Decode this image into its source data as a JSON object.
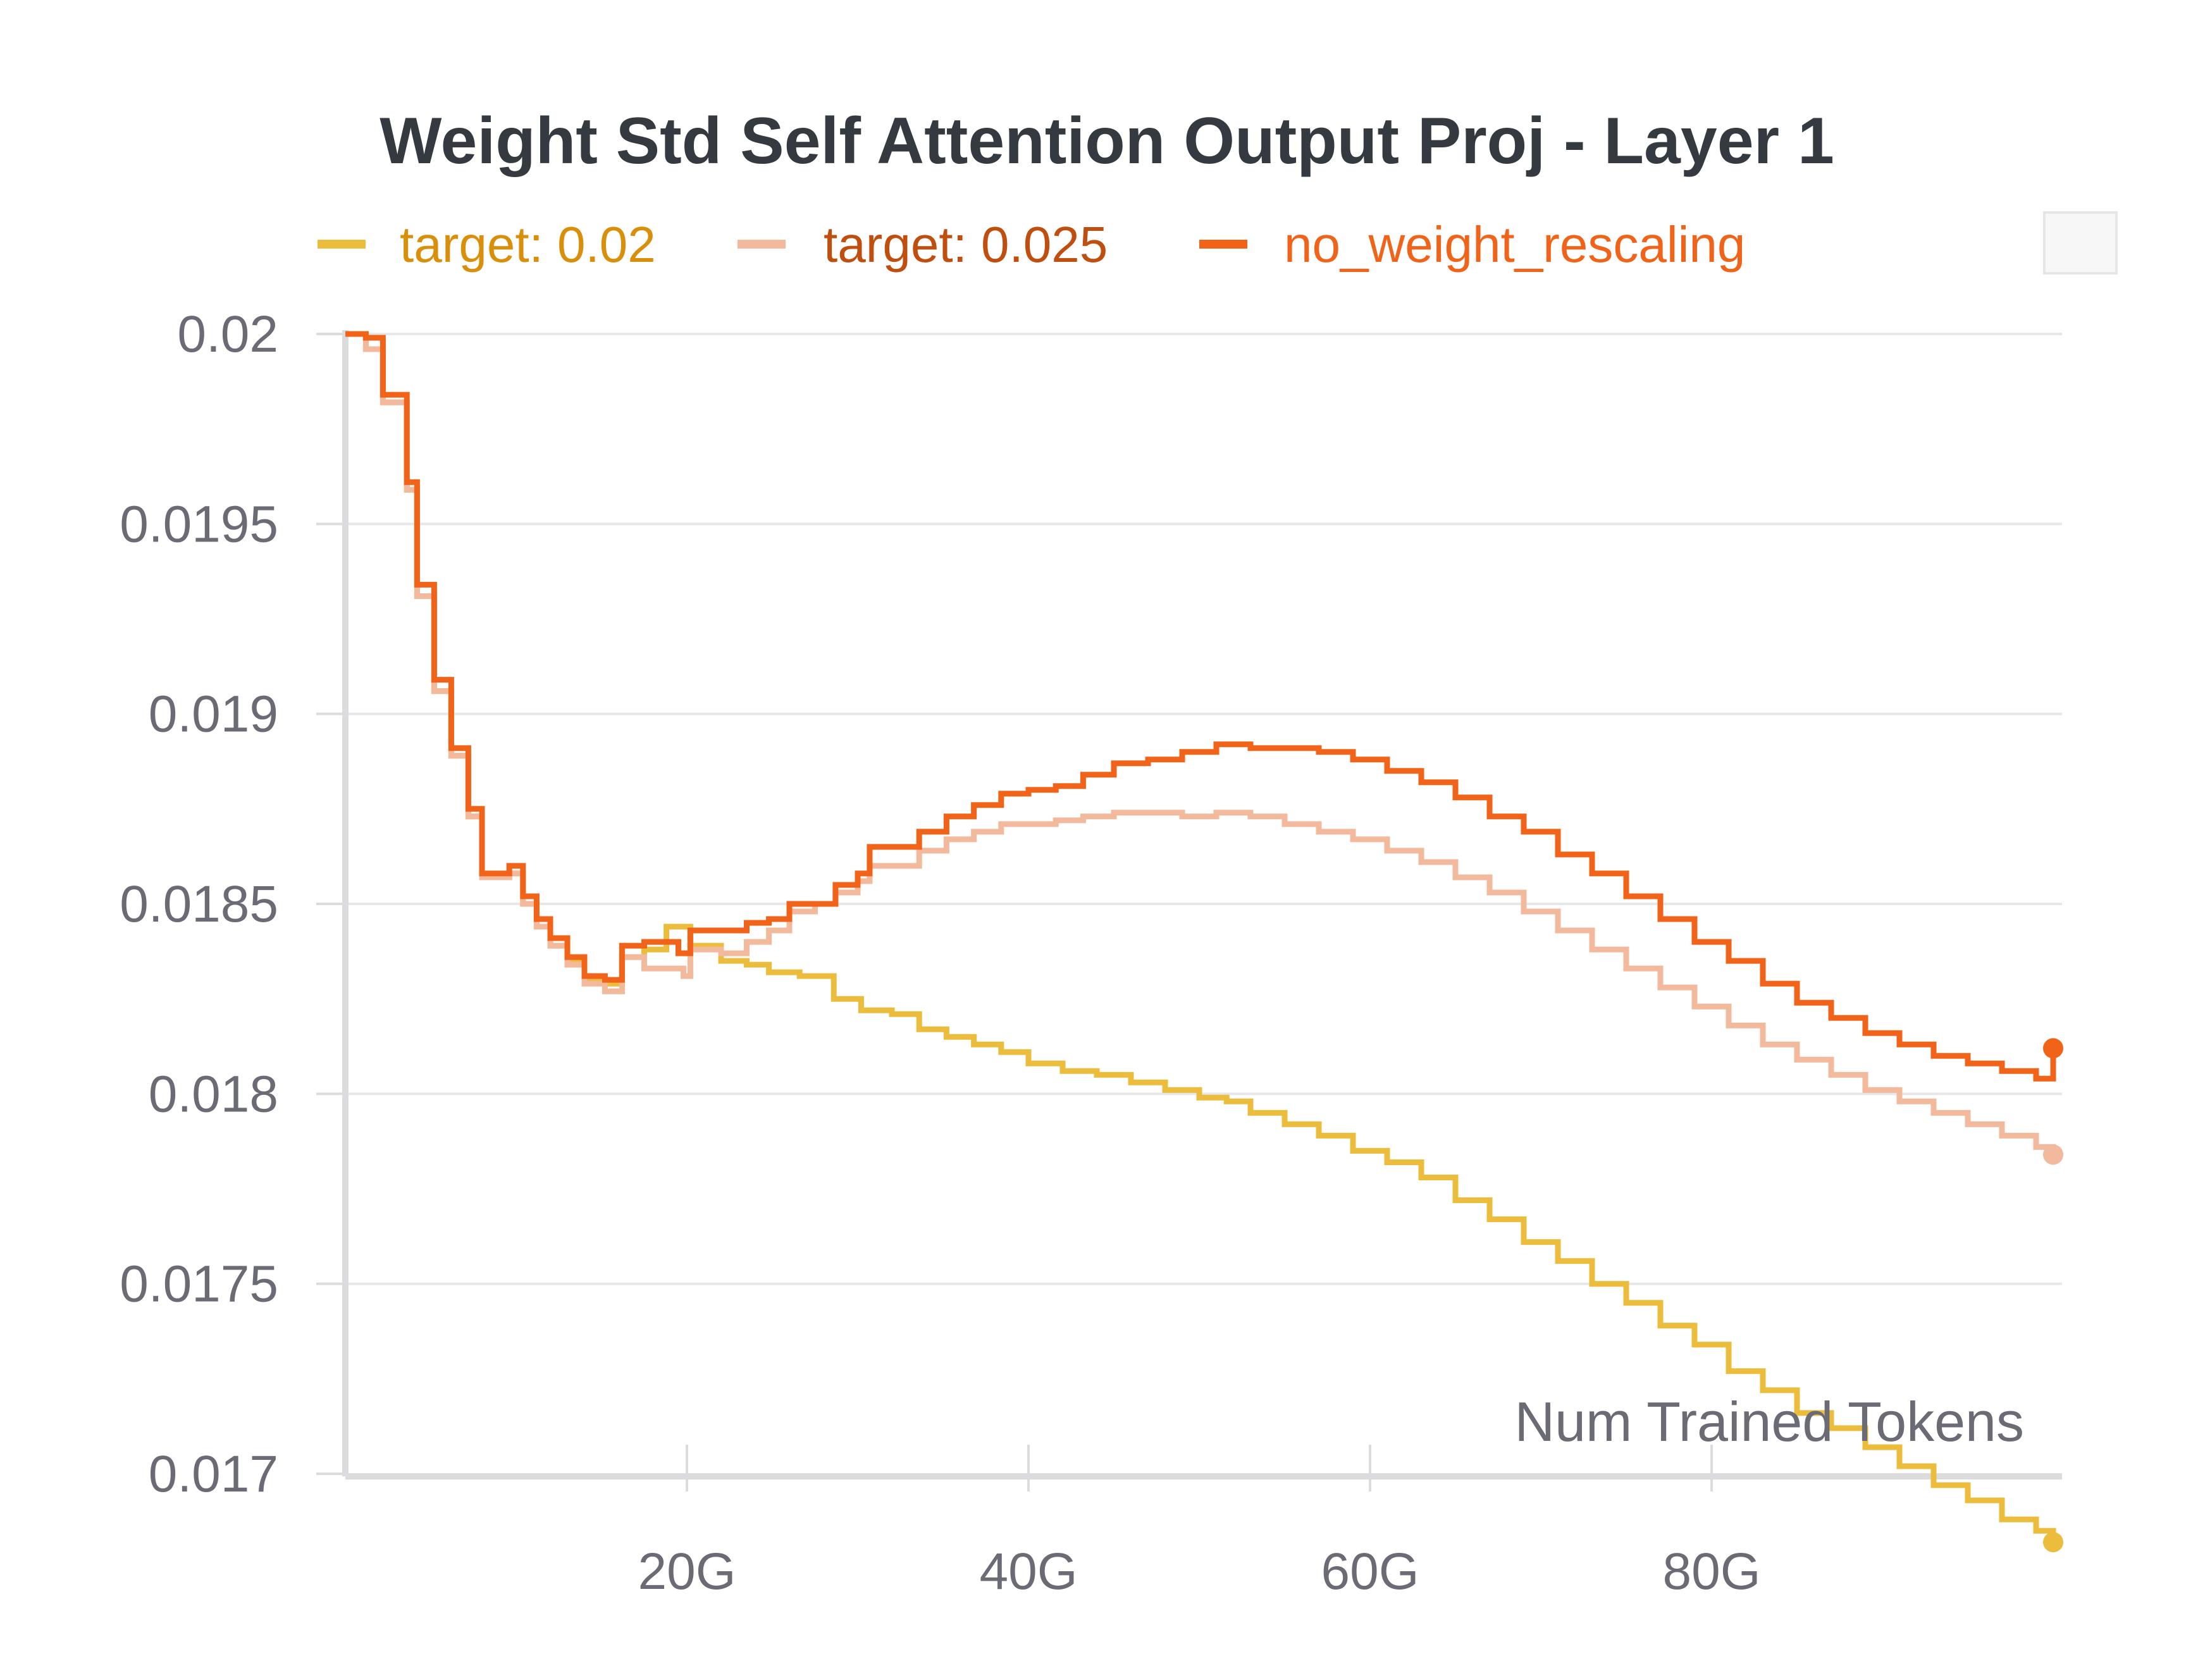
{
  "chart_data": {
    "type": "line",
    "title": "Weight Std Self Attention Output Proj - Layer 1",
    "xlabel": "Num Trained Tokens",
    "ylabel": "",
    "xlim": [
      0,
      100
    ],
    "ylim": [
      0.017,
      0.02
    ],
    "x_unit": "G tokens",
    "x_ticks": [
      {
        "value": 20,
        "label": "20G"
      },
      {
        "value": 40,
        "label": "40G"
      },
      {
        "value": 60,
        "label": "60G"
      },
      {
        "value": 80,
        "label": "80G"
      }
    ],
    "y_ticks": [
      {
        "value": 0.02,
        "label": "0.02"
      },
      {
        "value": 0.0195,
        "label": "0.0195"
      },
      {
        "value": 0.019,
        "label": "0.019"
      },
      {
        "value": 0.0185,
        "label": "0.0185"
      },
      {
        "value": 0.018,
        "label": "0.018"
      },
      {
        "value": 0.0175,
        "label": "0.0175"
      },
      {
        "value": 0.017,
        "label": "0.017"
      }
    ],
    "grid": true,
    "legend_position": "top",
    "line_style": "step",
    "series": [
      {
        "name": "target: 0.02",
        "color": "#ecbc3c",
        "label_color": "#d98f0a",
        "points": [
          [
            0,
            0.02
          ],
          [
            1.2,
            0.01996
          ],
          [
            2.2,
            0.01982
          ],
          [
            3.6,
            0.01959
          ],
          [
            4.2,
            0.01931
          ],
          [
            5.2,
            0.01906
          ],
          [
            6.2,
            0.01889
          ],
          [
            7.2,
            0.01873
          ],
          [
            8,
            0.01857
          ],
          [
            9.6,
            0.01858
          ],
          [
            10.4,
            0.0185
          ],
          [
            11.2,
            0.01844
          ],
          [
            12,
            0.01839
          ],
          [
            13,
            0.01835
          ],
          [
            14,
            0.0183
          ],
          [
            15.2,
            0.01829
          ],
          [
            16.2,
            0.01836
          ],
          [
            17.5,
            0.01838
          ],
          [
            18.8,
            0.01844
          ],
          [
            20.2,
            0.01839
          ],
          [
            22,
            0.01835
          ],
          [
            23.5,
            0.01834
          ],
          [
            24.8,
            0.01832
          ],
          [
            26.6,
            0.01831
          ],
          [
            28.6,
            0.01825
          ],
          [
            30.2,
            0.01822
          ],
          [
            32,
            0.01821
          ],
          [
            33.6,
            0.01817
          ],
          [
            35.2,
            0.01815
          ],
          [
            36.8,
            0.01813
          ],
          [
            38.4,
            0.01811
          ],
          [
            40,
            0.01808
          ],
          [
            42,
            0.01806
          ],
          [
            44,
            0.01805
          ],
          [
            46,
            0.01803
          ],
          [
            48,
            0.01801
          ],
          [
            50,
            0.01799
          ],
          [
            51.6,
            0.01798
          ],
          [
            53,
            0.01795
          ],
          [
            55,
            0.01792
          ],
          [
            57,
            0.01789
          ],
          [
            59,
            0.01785
          ],
          [
            61,
            0.01782
          ],
          [
            63,
            0.01778
          ],
          [
            65,
            0.01772
          ],
          [
            67,
            0.01767
          ],
          [
            69,
            0.01761
          ],
          [
            71,
            0.01756
          ],
          [
            73,
            0.0175
          ],
          [
            75,
            0.01745
          ],
          [
            77,
            0.01739
          ],
          [
            79,
            0.01734
          ],
          [
            81,
            0.01727
          ],
          [
            83,
            0.01722
          ],
          [
            85,
            0.01716
          ],
          [
            87,
            0.01712
          ],
          [
            89,
            0.01707
          ],
          [
            91,
            0.01702
          ],
          [
            93,
            0.01697
          ],
          [
            95,
            0.01693
          ],
          [
            97,
            0.01688
          ],
          [
            99,
            0.01685
          ],
          [
            100,
            0.01682
          ]
        ]
      },
      {
        "name": "target: 0.025",
        "color": "#f2b99c",
        "label_color": "#c04e0f",
        "points": [
          [
            0,
            0.02
          ],
          [
            1.2,
            0.01996
          ],
          [
            2.2,
            0.01982
          ],
          [
            3.6,
            0.01959
          ],
          [
            4.2,
            0.01931
          ],
          [
            5.2,
            0.01906
          ],
          [
            6.2,
            0.01889
          ],
          [
            7.2,
            0.01873
          ],
          [
            8,
            0.01857
          ],
          [
            9.6,
            0.01858
          ],
          [
            10.4,
            0.0185
          ],
          [
            11.2,
            0.01844
          ],
          [
            12,
            0.01839
          ],
          [
            13,
            0.01834
          ],
          [
            14,
            0.01829
          ],
          [
            15.2,
            0.01827
          ],
          [
            16.2,
            0.01836
          ],
          [
            17.5,
            0.01833
          ],
          [
            19.8,
            0.01831
          ],
          [
            20.2,
            0.01838
          ],
          [
            22,
            0.01837
          ],
          [
            23.5,
            0.0184
          ],
          [
            24.8,
            0.01843
          ],
          [
            26,
            0.01848
          ],
          [
            27.5,
            0.0185
          ],
          [
            28.7,
            0.01853
          ],
          [
            30,
            0.01856
          ],
          [
            30.7,
            0.0186
          ],
          [
            33.6,
            0.01864
          ],
          [
            35.2,
            0.01867
          ],
          [
            36.8,
            0.01869
          ],
          [
            38.4,
            0.01871
          ],
          [
            40,
            0.01871
          ],
          [
            41.6,
            0.01872
          ],
          [
            43.2,
            0.01873
          ],
          [
            45,
            0.01874
          ],
          [
            47,
            0.01874
          ],
          [
            49,
            0.01873
          ],
          [
            51,
            0.01874
          ],
          [
            53,
            0.01873
          ],
          [
            55,
            0.01871
          ],
          [
            57,
            0.01869
          ],
          [
            59,
            0.01867
          ],
          [
            61,
            0.01864
          ],
          [
            63,
            0.01861
          ],
          [
            65,
            0.01857
          ],
          [
            67,
            0.01853
          ],
          [
            69,
            0.01848
          ],
          [
            71,
            0.01843
          ],
          [
            73,
            0.01838
          ],
          [
            75,
            0.01833
          ],
          [
            77,
            0.01828
          ],
          [
            79,
            0.01823
          ],
          [
            81,
            0.01818
          ],
          [
            83,
            0.01813
          ],
          [
            85,
            0.01809
          ],
          [
            87,
            0.01805
          ],
          [
            89,
            0.01801
          ],
          [
            91,
            0.01798
          ],
          [
            93,
            0.01795
          ],
          [
            95,
            0.01792
          ],
          [
            97,
            0.01789
          ],
          [
            99,
            0.01786
          ],
          [
            100,
            0.01784
          ]
        ]
      },
      {
        "name": "no_weight_rescaling",
        "color": "#f2631a",
        "label_color": "#f2631a",
        "points": [
          [
            0,
            0.02
          ],
          [
            1.2,
            0.01999
          ],
          [
            2.2,
            0.01984
          ],
          [
            3.6,
            0.01961
          ],
          [
            4.2,
            0.01934
          ],
          [
            5.2,
            0.01909
          ],
          [
            6.2,
            0.01891
          ],
          [
            7.2,
            0.01875
          ],
          [
            8,
            0.01858
          ],
          [
            9.6,
            0.0186
          ],
          [
            10.4,
            0.01852
          ],
          [
            11.2,
            0.01846
          ],
          [
            12,
            0.01841
          ],
          [
            13,
            0.01836
          ],
          [
            14,
            0.01831
          ],
          [
            15.2,
            0.0183
          ],
          [
            16.2,
            0.01839
          ],
          [
            17.5,
            0.0184
          ],
          [
            18.8,
            0.0184
          ],
          [
            19.5,
            0.01837
          ],
          [
            20.2,
            0.01843
          ],
          [
            22,
            0.01843
          ],
          [
            23.5,
            0.01845
          ],
          [
            24.8,
            0.01846
          ],
          [
            26,
            0.0185
          ],
          [
            27.5,
            0.0185
          ],
          [
            28.7,
            0.01855
          ],
          [
            30,
            0.01858
          ],
          [
            30.7,
            0.01865
          ],
          [
            33.6,
            0.01869
          ],
          [
            35.2,
            0.01873
          ],
          [
            36.8,
            0.01876
          ],
          [
            38.4,
            0.01879
          ],
          [
            40,
            0.0188
          ],
          [
            41.6,
            0.01881
          ],
          [
            43.2,
            0.01884
          ],
          [
            45,
            0.01887
          ],
          [
            47,
            0.01888
          ],
          [
            49,
            0.0189
          ],
          [
            51,
            0.01892
          ],
          [
            53,
            0.01891
          ],
          [
            55,
            0.01891
          ],
          [
            57,
            0.0189
          ],
          [
            59,
            0.01888
          ],
          [
            61,
            0.01885
          ],
          [
            63,
            0.01882
          ],
          [
            65,
            0.01878
          ],
          [
            67,
            0.01873
          ],
          [
            69,
            0.01869
          ],
          [
            71,
            0.01863
          ],
          [
            73,
            0.01858
          ],
          [
            75,
            0.01852
          ],
          [
            77,
            0.01846
          ],
          [
            79,
            0.0184
          ],
          [
            81,
            0.01835
          ],
          [
            83,
            0.01829
          ],
          [
            85,
            0.01824
          ],
          [
            87,
            0.0182
          ],
          [
            89,
            0.01816
          ],
          [
            91,
            0.01813
          ],
          [
            93,
            0.0181
          ],
          [
            95,
            0.01808
          ],
          [
            97,
            0.01806
          ],
          [
            99,
            0.01804
          ],
          [
            100,
            0.01812
          ]
        ]
      }
    ]
  }
}
